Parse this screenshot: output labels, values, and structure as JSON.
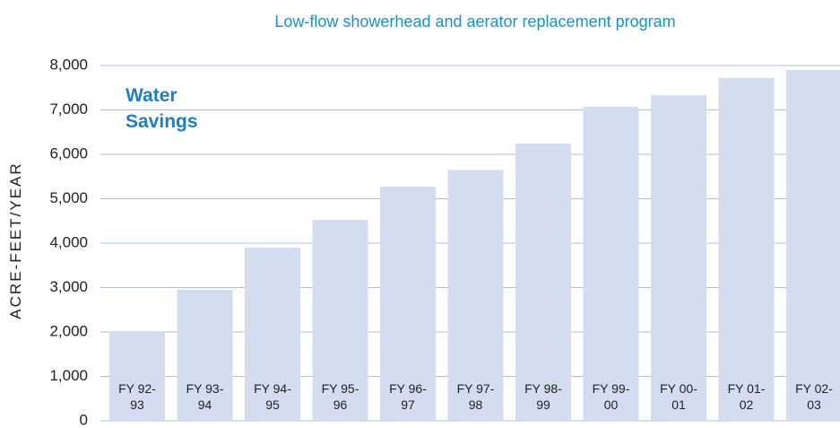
{
  "chart_data": {
    "type": "bar",
    "title": "Low-flow showerhead and aerator replacement program",
    "annotation": "Water Savings",
    "y_label": "ACRE-FEET/YEAR",
    "categories": [
      "FY 92-93",
      "FY 93-94",
      "FY 94-95",
      "FY 95-96",
      "FY 96-97",
      "FY 97-98",
      "FY 98-99",
      "FY 99-00",
      "FY 00-01",
      "FY 01-02",
      "FY 02-03"
    ],
    "values": [
      2000,
      2950,
      3900,
      4525,
      5270,
      5650,
      6240,
      7070,
      7330,
      7720,
      7900
    ],
    "color": "#d3ddef",
    "ylim": [
      0,
      8000
    ],
    "yticks": [
      0,
      {
        "value": 1000,
        "label": "1,000"
      },
      {
        "value": 2000,
        "label": "2,000"
      },
      {
        "value": 3000,
        "label": "3,000"
      },
      {
        "value": 4000,
        "label": "4,000"
      },
      {
        "value": 5000,
        "label": "5,000"
      },
      {
        "value": 6000,
        "label": "6,000"
      },
      {
        "value": 7000,
        "label": "7,000"
      },
      {
        "value": 8000,
        "label": "8,000"
      }
    ],
    "grid": true
  }
}
